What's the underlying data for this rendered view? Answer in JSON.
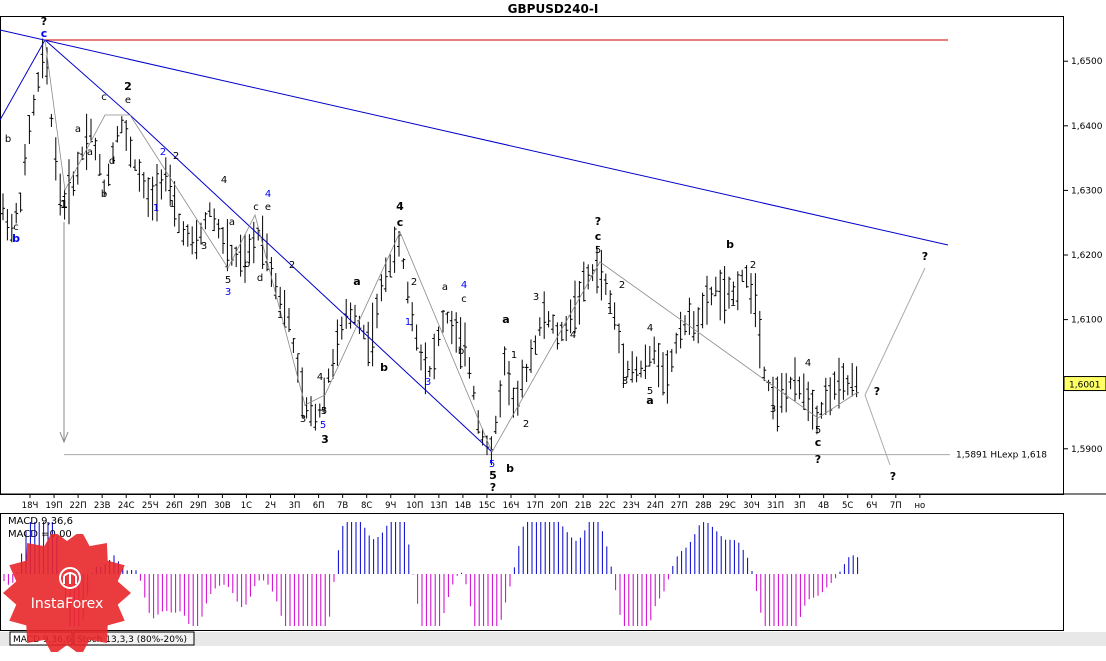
{
  "chart_data": {
    "type": "candlestick",
    "title": "GBPUSD240-I",
    "price_range": [
      1.583,
      1.657
    ],
    "y_ticks": [
      "1,6500",
      "1,6400",
      "1,6300",
      "1,6200",
      "1,6100",
      "1,6000",
      "1,5900"
    ],
    "y_tick_values": [
      1.65,
      1.64,
      1.63,
      1.62,
      1.61,
      1.6,
      1.59
    ],
    "current_price_label": "1,6001",
    "current_price": 1.6001,
    "hline_label": "1,5891 HLexp 1,618",
    "hline_value": 1.5891,
    "x_ticks": [
      "18Ч",
      "19П",
      "22П",
      "23В",
      "24С",
      "25Ч",
      "26П",
      "29П",
      "30В",
      "1С",
      "2Ч",
      "3П",
      "6П",
      "7В",
      "8С",
      "9Ч",
      "10П",
      "13П",
      "14В",
      "15С",
      "16Ч",
      "17П",
      "20П",
      "21В",
      "22С",
      "23Ч",
      "24П",
      "27П",
      "28В",
      "29С",
      "30Ч",
      "31П",
      "3П",
      "4В",
      "5С",
      "6Ч",
      "7П",
      "но"
    ],
    "wave_labels": [
      {
        "t": "?",
        "c": "#000"
      },
      {
        "t": "c",
        "c": "#00f"
      },
      {
        "t": "b",
        "c": "#00f"
      },
      {
        "t": "c",
        "c": "#000"
      },
      {
        "t": "b",
        "c": "#000"
      },
      {
        "t": "a",
        "c": "#000"
      },
      {
        "t": "1",
        "c": "#000"
      },
      {
        "t": "2",
        "c": "#000"
      },
      {
        "t": "c",
        "c": "#000"
      },
      {
        "t": "e",
        "c": "#000"
      },
      {
        "t": "d",
        "c": "#000"
      },
      {
        "t": "b",
        "c": "#000"
      },
      {
        "t": "a",
        "c": "#000"
      },
      {
        "t": "2",
        "c": "#00f"
      },
      {
        "t": "2",
        "c": "#000"
      },
      {
        "t": "1",
        "c": "#00f"
      },
      {
        "t": "1",
        "c": "#000"
      },
      {
        "t": "4",
        "c": "#000"
      },
      {
        "t": "a",
        "c": "#000"
      },
      {
        "t": "3",
        "c": "#000"
      },
      {
        "t": "4",
        "c": "#00f"
      },
      {
        "t": "c",
        "c": "#000"
      },
      {
        "t": "e",
        "c": "#000"
      },
      {
        "t": "d",
        "c": "#000"
      },
      {
        "t": "b",
        "c": "#000"
      },
      {
        "t": "5",
        "c": "#000"
      },
      {
        "t": "3",
        "c": "#00f"
      },
      {
        "t": "2",
        "c": "#000"
      },
      {
        "t": "1",
        "c": "#000"
      },
      {
        "t": "4",
        "c": "#000"
      },
      {
        "t": "5",
        "c": "#000"
      },
      {
        "t": "5",
        "c": "#00f"
      },
      {
        "t": "3",
        "c": "#000"
      },
      {
        "t": "3",
        "c": "#000"
      },
      {
        "t": "a",
        "c": "#000"
      },
      {
        "t": "b",
        "c": "#000"
      },
      {
        "t": "4",
        "c": "#000"
      },
      {
        "t": "c",
        "c": "#000"
      },
      {
        "t": "2",
        "c": "#000"
      },
      {
        "t": "1",
        "c": "#00f"
      },
      {
        "t": "a",
        "c": "#000"
      },
      {
        "t": "4",
        "c": "#00f"
      },
      {
        "t": "c",
        "c": "#000"
      },
      {
        "t": "b",
        "c": "#000"
      },
      {
        "t": "3",
        "c": "#00f"
      },
      {
        "t": "a",
        "c": "#000"
      },
      {
        "t": "1",
        "c": "#000"
      },
      {
        "t": "2",
        "c": "#000"
      },
      {
        "t": "3",
        "c": "#000"
      },
      {
        "t": "5",
        "c": "#00f"
      },
      {
        "t": "5",
        "c": "#000"
      },
      {
        "t": "?",
        "c": "#000"
      },
      {
        "t": "b",
        "c": "#000"
      },
      {
        "t": "4",
        "c": "#000"
      },
      {
        "t": "?",
        "c": "#000"
      },
      {
        "t": "c",
        "c": "#000"
      },
      {
        "t": "5",
        "c": "#000"
      },
      {
        "t": "2",
        "c": "#000"
      },
      {
        "t": "1",
        "c": "#000"
      },
      {
        "t": "4",
        "c": "#000"
      },
      {
        "t": "3",
        "c": "#000"
      },
      {
        "t": "5",
        "c": "#000"
      },
      {
        "t": "a",
        "c": "#000"
      },
      {
        "t": "b",
        "c": "#000"
      },
      {
        "t": "2",
        "c": "#000"
      },
      {
        "t": "1",
        "c": "#000"
      },
      {
        "t": "4",
        "c": "#000"
      },
      {
        "t": "3",
        "c": "#000"
      },
      {
        "t": "5",
        "c": "#000"
      },
      {
        "t": "c",
        "c": "#000"
      },
      {
        "t": "?",
        "c": "#000"
      },
      {
        "t": "?",
        "c": "#000"
      },
      {
        "t": "?",
        "c": "#000"
      },
      {
        "t": "?",
        "c": "#000"
      }
    ],
    "macd_label_1": "MACD 9,36,6",
    "macd_label_2": "MACD =0,00",
    "tab_labels": [
      "MACD 9,36,6",
      "Stoch 13,3,3 (80%-20%)"
    ],
    "colors": {
      "macd_pos": "#0000cc",
      "macd_neg": "#cc00cc",
      "red_line": "#cc0000",
      "blue_line": "#0000cc",
      "logo": "#e8262a"
    }
  },
  "logo": {
    "text": "InstaForex"
  }
}
